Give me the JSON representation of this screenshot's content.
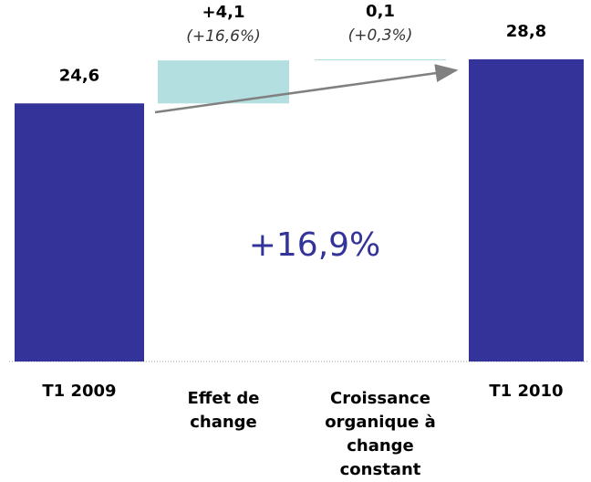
{
  "chart_data": {
    "type": "waterfall",
    "categories": [
      "T1 2009",
      "Effet de change",
      "Croissance organique à change constant",
      "T1 2010"
    ],
    "values": [
      24.6,
      4.1,
      0.1,
      28.8
    ],
    "value_labels": [
      "24,6",
      "+4,1",
      "0,1",
      "28,8"
    ],
    "percent_labels": [
      null,
      "(+16,6%)",
      "(+0,3%)",
      null
    ],
    "kinds": [
      "total",
      "delta",
      "delta",
      "total"
    ],
    "colors": [
      "#333399",
      "#b3dfe0",
      "#b3dfe0",
      "#333399"
    ],
    "annotation": "+16,9%"
  }
}
